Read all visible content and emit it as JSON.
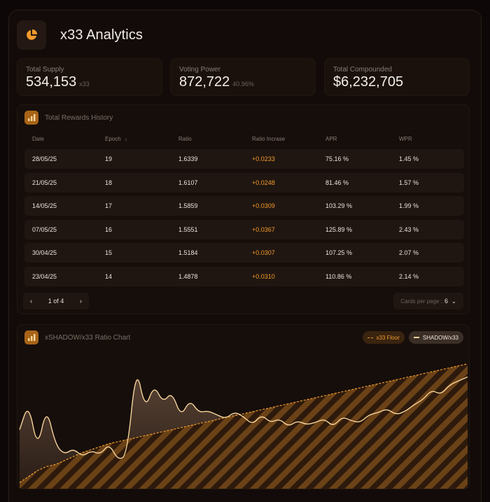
{
  "app": {
    "title": "x33 Analytics",
    "logo_icon": "pie-chart-icon",
    "accent": "#f29b2c"
  },
  "stats": [
    {
      "label": "Total Supply",
      "value": "534,153",
      "sub": "x33"
    },
    {
      "label": "Voting Power",
      "value": "872,722",
      "sub": "40.96%"
    },
    {
      "label": "Total Compounded",
      "value": "$6,232,705",
      "sub": ""
    }
  ],
  "rewards": {
    "title": "Total Rewards History",
    "icon": "bar-chart-icon",
    "columns": [
      "Date",
      "Epoch",
      "Ratio",
      "Ratio Incrase",
      "APR",
      "WPR"
    ],
    "sort_indicator": "↓",
    "rows": [
      [
        "28/05/25",
        "19",
        "1.6339",
        "+0.0233",
        "75.16 %",
        "1.45 %"
      ],
      [
        "21/05/25",
        "18",
        "1.6107",
        "+0.0248",
        "81.46 %",
        "1.57 %"
      ],
      [
        "14/05/25",
        "17",
        "1.5859",
        "+0.0309",
        "103.29 %",
        "1.99 %"
      ],
      [
        "07/05/25",
        "16",
        "1.5551",
        "+0.0367",
        "125.89 %",
        "2.43 %"
      ],
      [
        "30/04/25",
        "15",
        "1.5184",
        "+0.0307",
        "107.25 %",
        "2.07 %"
      ],
      [
        "23/04/25",
        "14",
        "1.4878",
        "+0.0310",
        "110.86 %",
        "2.14 %"
      ]
    ],
    "pager": {
      "prev": "‹",
      "label": "1 of 4",
      "next": "›"
    },
    "per_page": {
      "label": "Cards per page :",
      "value": "6",
      "chevron": "⌄"
    }
  },
  "ratio_chart": {
    "title": "xSHADOW/x33 Ratio Chart",
    "icon": "bar-chart-icon",
    "legend": [
      {
        "name": "x33 Floor",
        "color": "#f29b2c",
        "style": "dashed"
      },
      {
        "name": "SHADOW/x33",
        "color": "#f6d49b",
        "style": "solid"
      }
    ]
  },
  "chart_data": {
    "type": "area",
    "title": "xSHADOW/x33 Ratio Chart",
    "grid": false,
    "legend_position": "top-right",
    "x_index": [
      0,
      4,
      8,
      12,
      16,
      20,
      24,
      28,
      32,
      36,
      40,
      44,
      48,
      52,
      56,
      60,
      64,
      68,
      72,
      76,
      80,
      84,
      88,
      92,
      96,
      100,
      104,
      108,
      112,
      116,
      120,
      124,
      128,
      132,
      136,
      140,
      144,
      148,
      152,
      156,
      160,
      164,
      168,
      172,
      176,
      180,
      184,
      188,
      192,
      196,
      200
    ],
    "series": [
      {
        "name": "SHADOW/x33",
        "color": "#f6d49b",
        "values": [
          0.55,
          0.82,
          0.35,
          0.78,
          0.4,
          0.3,
          0.36,
          0.28,
          0.34,
          0.3,
          0.41,
          0.24,
          0.3,
          1.2,
          0.75,
          1.0,
          0.82,
          0.93,
          0.68,
          0.85,
          0.72,
          0.74,
          0.7,
          0.66,
          0.73,
          0.68,
          0.6,
          0.7,
          0.62,
          0.66,
          0.58,
          0.64,
          0.6,
          0.62,
          0.66,
          0.58,
          0.68,
          0.64,
          0.62,
          0.7,
          0.72,
          0.76,
          0.7,
          0.73,
          0.8,
          0.85,
          0.95,
          0.9,
          1.0,
          1.04,
          1.08
        ]
      },
      {
        "name": "x33 Floor",
        "color": "#f29b2c",
        "values": [
          0.02,
          0.08,
          0.14,
          0.18,
          0.2,
          0.24,
          0.28,
          0.32,
          0.35,
          0.38,
          0.41,
          0.43,
          0.45,
          0.47,
          0.49,
          0.51,
          0.53,
          0.55,
          0.57,
          0.59,
          0.61,
          0.63,
          0.65,
          0.67,
          0.69,
          0.71,
          0.73,
          0.75,
          0.77,
          0.79,
          0.81,
          0.83,
          0.85,
          0.87,
          0.89,
          0.91,
          0.93,
          0.95,
          0.97,
          0.99,
          1.01,
          1.03,
          1.05,
          1.07,
          1.09,
          1.11,
          1.13,
          1.15,
          1.17,
          1.19,
          1.21
        ]
      }
    ]
  }
}
